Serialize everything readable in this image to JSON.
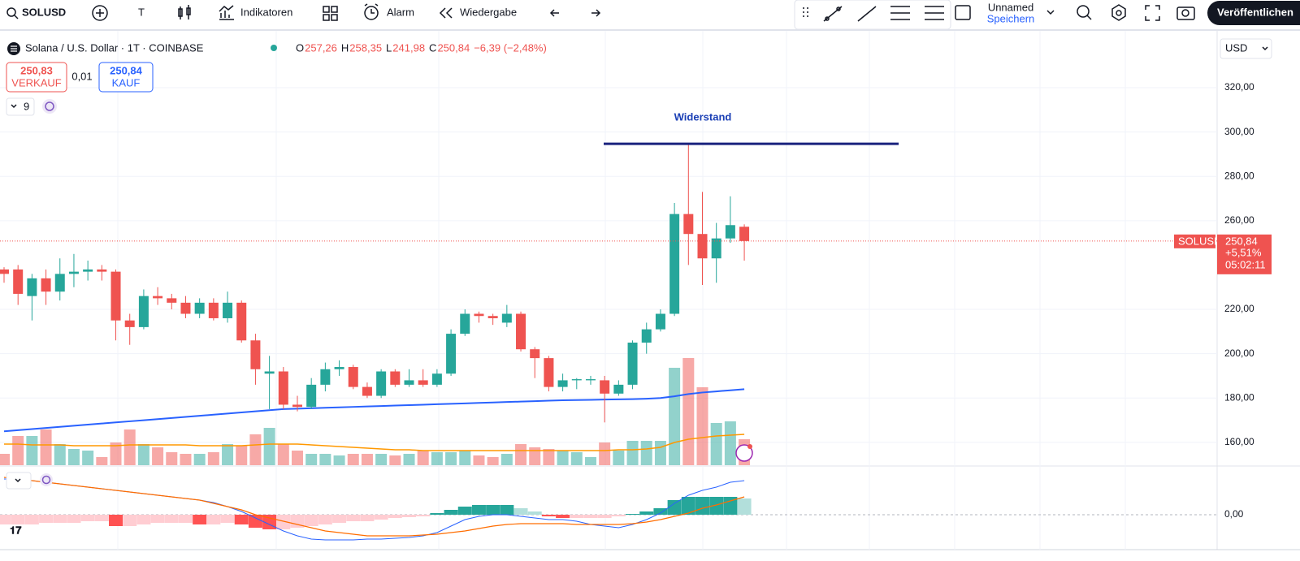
{
  "toolbar": {
    "symbol": "SOLUSD",
    "text_tool": "T",
    "indicators": "Indikatoren",
    "alert": "Alarm",
    "replay": "Wiedergabe",
    "layout_name": "Unnamed",
    "save": "Speichern",
    "publish": "Veröffentlichen"
  },
  "legend": {
    "title": "Solana / U.S. Dollar · 1T · COINBASE",
    "ohlc": [
      {
        "key": "O",
        "value": "257,26"
      },
      {
        "key": "H",
        "value": "258,35"
      },
      {
        "key": "L",
        "value": "241,98"
      },
      {
        "key": "C",
        "value": "250,84"
      }
    ],
    "change": "−6,39 (−2,48%)"
  },
  "trade": {
    "sell_price": "250,83",
    "sell": "VERKAUF",
    "spread": "0,01",
    "buy_price": "250,84",
    "buy": "KAUF"
  },
  "indicator_count": "9",
  "currency": "USD",
  "chart_data": {
    "type": "candlestick",
    "colors": {
      "up": "#26a69a",
      "down": "#ef5350"
    },
    "open": [
      238,
      238,
      226,
      234,
      228,
      236,
      237,
      238,
      237,
      215,
      212,
      226,
      225,
      223,
      218,
      223,
      216,
      223,
      206,
      191,
      192,
      177,
      176,
      186,
      193,
      194,
      185,
      181,
      192,
      186,
      188,
      186,
      191,
      209,
      218,
      217,
      214,
      218,
      202,
      198,
      185,
      188,
      188,
      188,
      182,
      186,
      205,
      211,
      218,
      263,
      254,
      243,
      252,
      257.26
    ],
    "high": [
      239,
      240,
      236,
      238,
      243,
      245,
      242,
      240,
      238,
      218,
      229,
      230,
      227,
      226,
      225,
      225,
      228,
      224,
      209,
      199,
      194,
      181,
      189,
      196,
      197,
      195,
      187,
      193,
      193,
      193,
      193,
      193,
      211,
      220,
      219,
      218,
      222,
      219,
      203,
      199,
      191,
      189,
      190,
      190,
      188,
      206,
      214,
      220,
      268,
      295,
      273,
      259,
      271,
      258.35
    ],
    "low": [
      232,
      222,
      215,
      222,
      224,
      230,
      233,
      233,
      206,
      204,
      211,
      222,
      220,
      216,
      216,
      215,
      214,
      205,
      186,
      175,
      175,
      174,
      175,
      183,
      190,
      184,
      180,
      180,
      185,
      185,
      185,
      185,
      190,
      208,
      214,
      213,
      212,
      201,
      189,
      183,
      183,
      184,
      186,
      169,
      181,
      184,
      200,
      210,
      217,
      240,
      231,
      232,
      250,
      241.98
    ],
    "close": [
      236,
      227,
      234,
      228,
      236,
      237,
      238,
      237,
      215,
      212,
      226,
      225,
      223,
      218,
      223,
      216,
      223,
      206,
      193,
      192,
      177,
      176,
      186,
      193,
      194,
      185,
      181,
      192,
      186,
      188,
      186,
      191,
      209,
      218,
      217,
      216,
      218,
      202,
      198,
      185,
      188,
      188.5,
      188.5,
      182,
      186,
      205,
      211,
      218,
      263,
      254,
      243,
      252,
      258,
      250.84
    ],
    "ylim": [
      149.7,
      344.9
    ],
    "yticks": [
      {
        "value": 160,
        "label": "160,00"
      },
      {
        "value": 180,
        "label": "180,00"
      },
      {
        "value": 200,
        "label": "200,00"
      },
      {
        "value": 220,
        "label": "220,00"
      },
      {
        "value": 260,
        "label": "260,00"
      },
      {
        "value": 280,
        "label": "280,00"
      },
      {
        "value": 300,
        "label": "300,00"
      },
      {
        "value": 320,
        "label": "320,00"
      }
    ],
    "grid": true,
    "symbol_label": "SOLUSD",
    "last_price": {
      "value": 250.84,
      "label": "250,84"
    },
    "change_percent": "+5,51%",
    "countdown": "05:02:11",
    "annotation": {
      "text": "Widerstand",
      "value": 294.7
    },
    "ma": {
      "color": "#2962ff",
      "values": [
        165,
        165.5,
        166,
        166.5,
        167,
        167.5,
        168,
        168.5,
        169,
        169.5,
        170,
        170.5,
        171,
        171.5,
        172,
        172.5,
        173,
        173.5,
        174,
        174.5,
        175,
        175.2,
        175.4,
        175.6,
        175.8,
        176,
        176.2,
        176.4,
        176.6,
        176.8,
        177,
        177.2,
        177.4,
        177.6,
        177.8,
        178,
        178.2,
        178.4,
        178.6,
        178.8,
        179,
        179.1,
        179.2,
        179.3,
        179.4,
        179.5,
        179.7,
        180,
        180.8,
        181.8,
        182.5,
        183,
        183.5,
        184
      ]
    },
    "volume": {
      "values": [
        14,
        36,
        36,
        44,
        26,
        20,
        18,
        10,
        28,
        44,
        26,
        22,
        16,
        14,
        14,
        16,
        26,
        24,
        38,
        46,
        26,
        18,
        14,
        14,
        12,
        14,
        14,
        14,
        12,
        14,
        18,
        16,
        16,
        18,
        12,
        10,
        14,
        26,
        22,
        20,
        18,
        16,
        10,
        28,
        18,
        30,
        30,
        30,
        120,
        132,
        96,
        52,
        54,
        32
      ],
      "ma_color": "#ff9800",
      "ma_values": [
        26,
        26,
        25,
        25,
        25,
        24,
        24,
        24,
        24,
        25,
        25,
        25,
        25,
        25,
        24,
        24,
        24,
        24,
        25,
        26,
        26,
        26,
        25,
        24,
        23,
        22,
        21,
        20,
        19,
        19,
        18,
        18,
        18,
        18,
        18,
        18,
        18,
        18,
        18,
        18,
        18,
        18,
        18,
        18,
        19,
        19,
        20,
        22,
        28,
        32,
        34,
        36,
        37,
        38
      ]
    },
    "macd": {
      "ylim": [
        -39,
        54
      ],
      "yticks": [
        {
          "value": 0,
          "label": "0,00"
        }
      ],
      "histogram": [
        -12,
        -12,
        -12,
        -10,
        -10,
        -10,
        -8,
        -8,
        -14,
        -14,
        -12,
        -10,
        -10,
        -10,
        -12,
        -12,
        -10,
        -12,
        -16,
        -18,
        -18,
        -16,
        -14,
        -12,
        -10,
        -8,
        -8,
        -6,
        -4,
        -3,
        -2,
        2,
        6,
        10,
        12,
        12,
        12,
        8,
        4,
        -2,
        -4,
        -4,
        -4,
        -4,
        -2,
        1,
        4,
        8,
        18,
        22,
        22,
        22,
        22,
        20
      ],
      "macd_line": {
        "color": "#2962ff",
        "values": [
          44,
          44,
          42,
          40,
          38,
          36,
          34,
          32,
          30,
          28,
          26,
          24,
          22,
          20,
          18,
          15,
          10,
          4,
          -4,
          -12,
          -20,
          -26,
          -30,
          -31,
          -31,
          -31,
          -30,
          -30,
          -29,
          -28,
          -26,
          -22,
          -14,
          -6,
          -2,
          0,
          0,
          -2,
          -4,
          -6,
          -6,
          -8,
          -12,
          -14,
          -16,
          -12,
          -6,
          2,
          14,
          24,
          30,
          34,
          40,
          42
        ]
      },
      "signal_line": {
        "color": "#ff6d00",
        "values": [
          46,
          44,
          42,
          40,
          38,
          36,
          34,
          32,
          30,
          28,
          26,
          24,
          22,
          20,
          18,
          14,
          10,
          6,
          0,
          -4,
          -8,
          -12,
          -16,
          -20,
          -22,
          -24,
          -26,
          -26,
          -26,
          -26,
          -25,
          -24,
          -22,
          -20,
          -17,
          -14,
          -12,
          -11,
          -11,
          -11,
          -11,
          -12,
          -12,
          -12,
          -12,
          -11,
          -9,
          -6,
          -2,
          2,
          8,
          12,
          17,
          22
        ]
      }
    }
  }
}
